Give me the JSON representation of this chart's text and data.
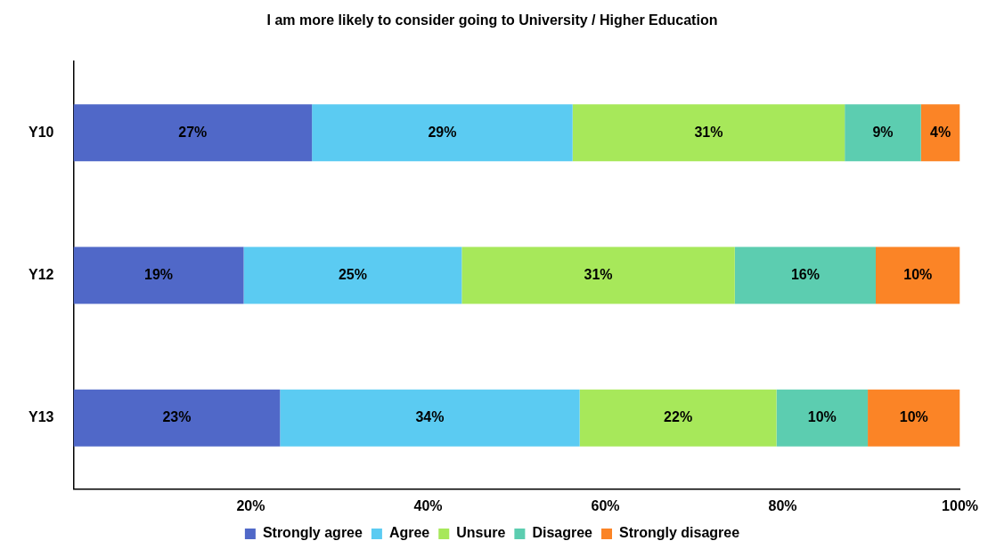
{
  "chart_data": {
    "type": "bar",
    "title": "I am more likely to consider going to University / Higher Education",
    "orientation": "horizontal",
    "stacked": true,
    "categories": [
      "Y10",
      "Y12",
      "Y13"
    ],
    "series": [
      {
        "name": "Strongly agree",
        "color": "#5068c8",
        "values": [
          26.9,
          19.2,
          23.3
        ],
        "value_labels": [
          "27%",
          "19%",
          "23%"
        ]
      },
      {
        "name": "Agree",
        "color": "#5bcbf2",
        "values": [
          29.4,
          24.6,
          33.8
        ],
        "value_labels": [
          "29%",
          "25%",
          "34%"
        ]
      },
      {
        "name": "Unsure",
        "color": "#a7e85a",
        "values": [
          30.7,
          30.8,
          22.2
        ],
        "value_labels": [
          "31%",
          "31%",
          "22%"
        ]
      },
      {
        "name": "Disagree",
        "color": "#5ccdb0",
        "values": [
          8.6,
          15.9,
          10.3
        ],
        "value_labels": [
          "9%",
          "16%",
          "10%"
        ]
      },
      {
        "name": "Strongly disagree",
        "color": "#fb8426",
        "values": [
          4.4,
          9.5,
          10.4
        ],
        "value_labels": [
          "4%",
          "10%",
          "10%"
        ]
      }
    ],
    "xlim": [
      0,
      100
    ],
    "xticks": [
      {
        "value": 0,
        "label": null
      },
      {
        "value": 20,
        "label": "20%"
      },
      {
        "value": 40,
        "label": "40%"
      },
      {
        "value": 60,
        "label": "60%"
      },
      {
        "value": 80,
        "label": "80%"
      },
      {
        "value": 100,
        "label": "100%"
      }
    ],
    "legend": "bottom"
  }
}
